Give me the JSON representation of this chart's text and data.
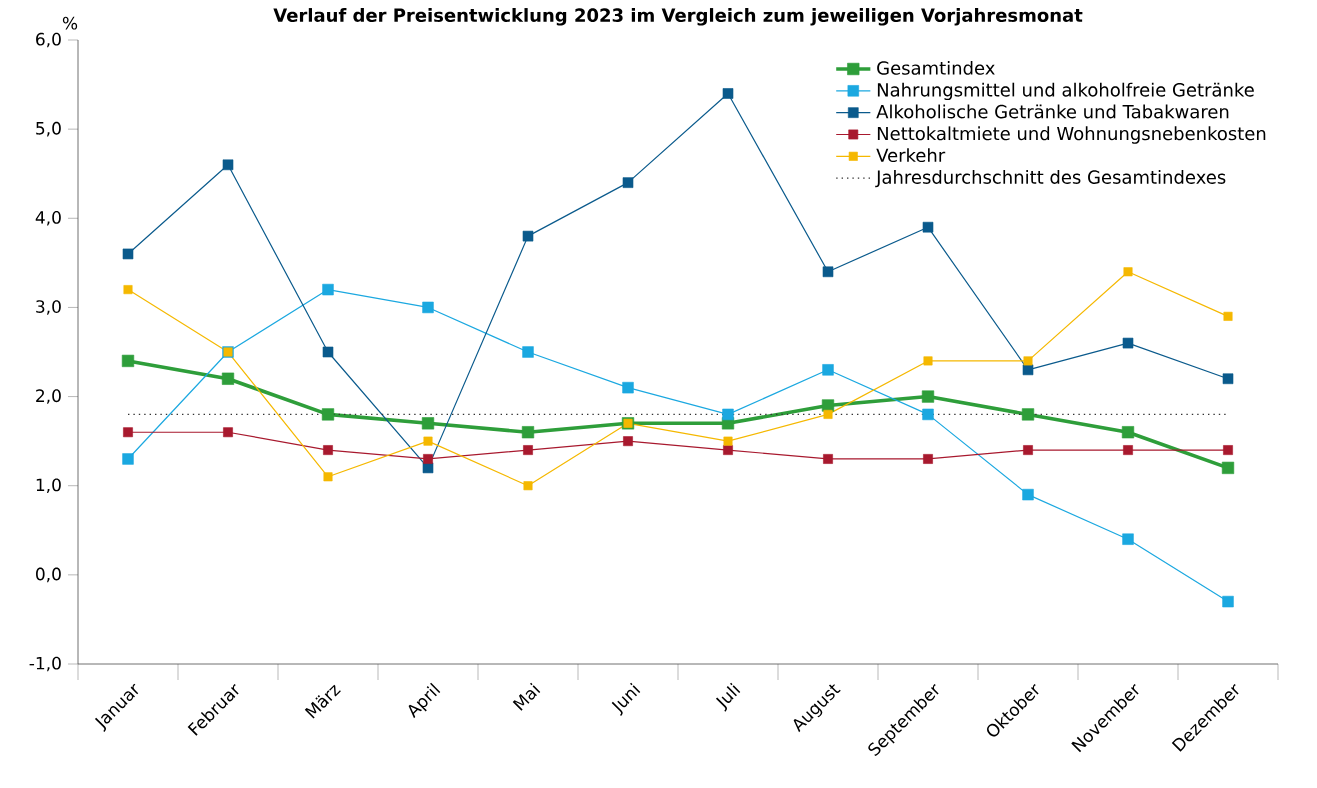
{
  "chart_data": {
    "type": "line",
    "title": "Verlauf der Preisentwicklung 2023 im Vergleich zum jeweiligen Vorjahresmonat",
    "ylabel": "%",
    "categories": [
      "Januar",
      "Februar",
      "März",
      "April",
      "Mai",
      "Juni",
      "Juli",
      "August",
      "September",
      "Oktober",
      "November",
      "Dezember"
    ],
    "series": [
      {
        "name": "Gesamtindex",
        "color": "#2e9e3a",
        "values": [
          2.4,
          2.2,
          1.8,
          1.7,
          1.6,
          1.7,
          1.7,
          1.9,
          2.0,
          1.8,
          1.6,
          1.2
        ]
      },
      {
        "name": "Nahrungsmittel und alkoholfreie Getränke",
        "color": "#1ba8e0",
        "values": [
          1.3,
          2.5,
          3.2,
          3.0,
          2.5,
          2.1,
          1.8,
          2.3,
          1.8,
          0.9,
          0.4,
          -0.3
        ]
      },
      {
        "name": "Alkoholische Getränke und Tabakwaren",
        "color": "#0a5a8c",
        "values": [
          3.6,
          4.6,
          2.5,
          1.2,
          3.8,
          4.4,
          5.4,
          3.4,
          3.9,
          2.3,
          2.6,
          2.2
        ]
      },
      {
        "name": "Nettokaltmiete und Wohnungsnebenkosten",
        "color": "#a8192e",
        "values": [
          1.6,
          1.6,
          1.4,
          1.3,
          1.4,
          1.5,
          1.4,
          1.3,
          1.3,
          1.4,
          1.4,
          1.4
        ]
      },
      {
        "name": "Verkehr",
        "color": "#f5b800",
        "values": [
          3.2,
          2.5,
          1.1,
          1.5,
          1.0,
          1.7,
          1.5,
          1.8,
          2.4,
          2.4,
          3.4,
          2.9
        ]
      }
    ],
    "ref_lines": [
      {
        "axis": "y",
        "value": 1.8,
        "label": "Jahresdurchschnitt des Gesamtindexes",
        "color": "#333333",
        "line_style": "dotted"
      }
    ],
    "ylim": [
      -1,
      6
    ],
    "yticks": [
      {
        "value": -1,
        "label": "-1,0"
      },
      {
        "value": 0,
        "label": "0,0"
      },
      {
        "value": 1,
        "label": "1,0"
      },
      {
        "value": 2,
        "label": "2,0"
      },
      {
        "value": 3,
        "label": "3,0"
      },
      {
        "value": 4,
        "label": "4,0"
      },
      {
        "value": 5,
        "label": "5,0"
      },
      {
        "value": 6,
        "label": "6,0"
      }
    ],
    "grid": false,
    "legend": "top right",
    "marker": "square",
    "line_style": "solid"
  }
}
